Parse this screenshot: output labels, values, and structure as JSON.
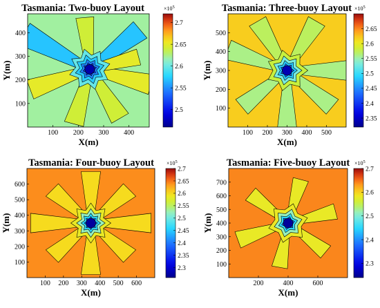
{
  "figure": {
    "x_axis_label": "X(m)",
    "y_axis_label": "Y(m)",
    "colorbar_multiplier": "×10",
    "colorbar_exponent": "5",
    "colormap": "jet",
    "colors": {
      "deep_blue": "#0000a0",
      "blue": "#1f4fff",
      "cyan": "#33d6ff",
      "light_cyan": "#8cf0e6",
      "yellow_green": "#c8f03c",
      "yellow": "#f2e81c",
      "orange": "#ff9a1c",
      "red_orange": "#f56418",
      "red": "#d22a14",
      "dark_red": "#96100e"
    }
  },
  "chart_data": [
    {
      "type": "heatmap",
      "subtype": "filled-contour",
      "title": "Tasmania: Two-buoy Layout",
      "xlabel": "X(m)",
      "ylabel": "Y(m)",
      "xlim": [
        0,
        480
      ],
      "ylim": [
        0,
        480
      ],
      "xticks": [
        100,
        200,
        300,
        400
      ],
      "yticks": [
        100,
        200,
        300,
        400
      ],
      "colorbar": {
        "range": [
          2.46,
          2.72
        ],
        "ticks": [
          2.5,
          2.55,
          2.6,
          2.65,
          2.7
        ],
        "tick_labels": [
          "2.5",
          "2.55",
          "2.6",
          "2.65",
          "2.7"
        ],
        "scale": "×10^5"
      },
      "center": [
        245,
        245
      ],
      "center_value": 2.47,
      "background_value": 2.62,
      "rays": [
        {
          "angle_deg": 150,
          "length": 300,
          "value": 2.57
        },
        {
          "angle_deg": 40,
          "length": 260,
          "value": 2.57
        },
        {
          "angle_deg": 200,
          "length": 250,
          "value": 2.65
        },
        {
          "angle_deg": 345,
          "length": 250,
          "value": 2.65
        },
        {
          "angle_deg": 255,
          "length": 240,
          "value": 2.64
        },
        {
          "angle_deg": 300,
          "length": 240,
          "value": 2.64
        },
        {
          "angle_deg": 95,
          "length": 220,
          "value": 2.64
        },
        {
          "angle_deg": 15,
          "length": 200,
          "value": 2.65
        }
      ]
    },
    {
      "type": "heatmap",
      "subtype": "filled-contour",
      "title": "Tasmania: Three-buoy Layout",
      "xlabel": "X(m)",
      "ylabel": "Y(m)",
      "xlim": [
        0,
        600
      ],
      "ylim": [
        0,
        600
      ],
      "xticks": [
        100,
        200,
        300,
        400,
        500
      ],
      "yticks": [
        100,
        200,
        300,
        400,
        500
      ],
      "colorbar": {
        "range": [
          2.32,
          2.7
        ],
        "ticks": [
          2.35,
          2.4,
          2.45,
          2.5,
          2.55,
          2.6,
          2.65
        ],
        "tick_labels": [
          "2.35",
          "2.4",
          "2.45",
          "2.5",
          "2.55",
          "2.6",
          "2.65"
        ],
        "scale": "×10^5"
      },
      "center": [
        300,
        300
      ],
      "center_value": 2.34,
      "background_value": 2.62,
      "rays": [
        {
          "angle_deg": 0,
          "length": 330,
          "value": 2.56
        },
        {
          "angle_deg": 160,
          "length": 320,
          "value": 2.56
        },
        {
          "angle_deg": 60,
          "length": 300,
          "value": 2.57
        },
        {
          "angle_deg": 120,
          "length": 300,
          "value": 2.57
        },
        {
          "angle_deg": 270,
          "length": 300,
          "value": 2.56
        },
        {
          "angle_deg": 220,
          "length": 300,
          "value": 2.56
        },
        {
          "angle_deg": 320,
          "length": 300,
          "value": 2.56
        }
      ]
    },
    {
      "type": "heatmap",
      "subtype": "filled-contour",
      "title": "Tasmania: Four-buoy Layout",
      "xlabel": "X(m)",
      "ylabel": "Y(m)",
      "xlim": [
        0,
        700
      ],
      "ylim": [
        0,
        700
      ],
      "xticks": [
        100,
        200,
        300,
        400,
        500,
        600
      ],
      "yticks": [
        100,
        200,
        300,
        400,
        500,
        600
      ],
      "colorbar": {
        "range": [
          2.26,
          2.7
        ],
        "ticks": [
          2.3,
          2.35,
          2.4,
          2.45,
          2.5,
          2.55,
          2.6,
          2.65,
          2.7
        ],
        "tick_labels": [
          "2.3",
          "2.35",
          "2.4",
          "2.45",
          "2.5",
          "2.55",
          "2.6",
          "2.65",
          "2.7"
        ],
        "scale": "×10^5"
      },
      "center": [
        350,
        350
      ],
      "center_value": 2.27,
      "background_value": 2.64,
      "rays": [
        {
          "angle_deg": 0,
          "length": 330,
          "value": 2.6
        },
        {
          "angle_deg": 45,
          "length": 300,
          "value": 2.6
        },
        {
          "angle_deg": 90,
          "length": 330,
          "value": 2.6
        },
        {
          "angle_deg": 135,
          "length": 300,
          "value": 2.6
        },
        {
          "angle_deg": 180,
          "length": 330,
          "value": 2.6
        },
        {
          "angle_deg": 225,
          "length": 300,
          "value": 2.6
        },
        {
          "angle_deg": 270,
          "length": 330,
          "value": 2.6
        },
        {
          "angle_deg": 315,
          "length": 300,
          "value": 2.6
        }
      ]
    },
    {
      "type": "heatmap",
      "subtype": "filled-contour",
      "title": "Tasmania: Five-buoy Layout",
      "xlabel": "X(m)",
      "ylabel": "Y(m)",
      "xlim": [
        0,
        800
      ],
      "ylim": [
        0,
        800
      ],
      "xticks": [
        200,
        400,
        600
      ],
      "yticks": [
        100,
        200,
        300,
        400,
        500,
        600,
        700
      ],
      "colorbar": {
        "range": [
          2.24,
          2.7
        ],
        "ticks": [
          2.3,
          2.4,
          2.5,
          2.6,
          2.7
        ],
        "tick_labels": [
          "2.3",
          "2.4",
          "2.5",
          "2.6",
          "2.7"
        ],
        "scale": "×10^5"
      },
      "center": [
        400,
        400
      ],
      "center_value": 2.25,
      "background_value": 2.64,
      "rays": [
        {
          "angle_deg": 15,
          "length": 330,
          "value": 2.58
        },
        {
          "angle_deg": 75,
          "length": 330,
          "value": 2.58
        },
        {
          "angle_deg": 140,
          "length": 330,
          "value": 2.58
        },
        {
          "angle_deg": 200,
          "length": 360,
          "value": 2.58
        },
        {
          "angle_deg": 260,
          "length": 330,
          "value": 2.58
        },
        {
          "angle_deg": 320,
          "length": 330,
          "value": 2.58
        }
      ]
    }
  ]
}
